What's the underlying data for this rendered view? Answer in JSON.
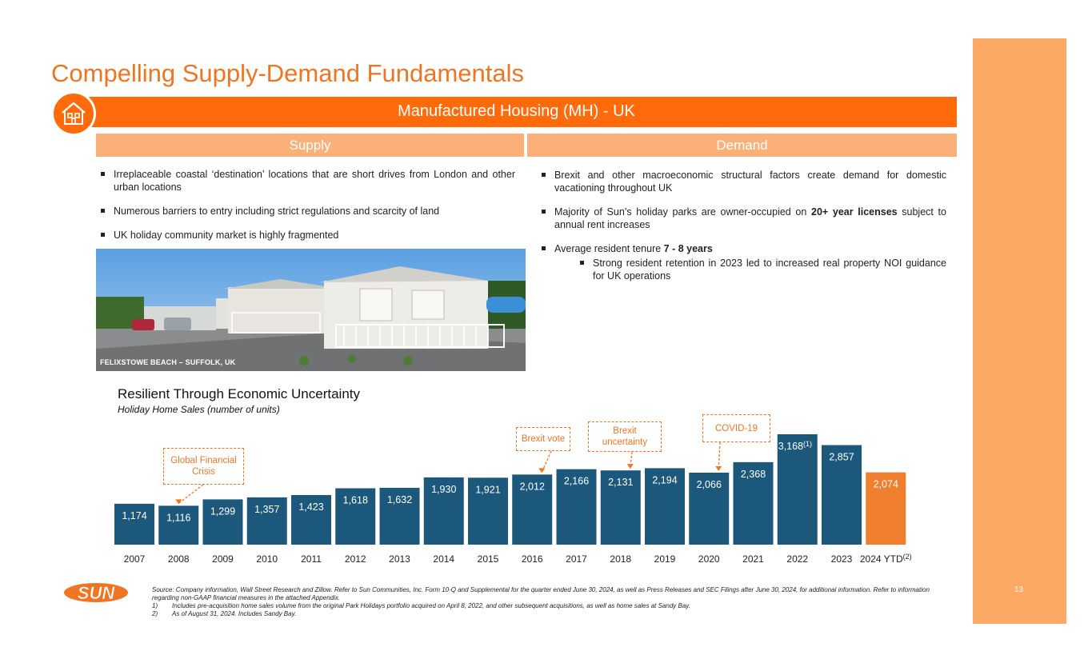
{
  "title": "Compelling Supply-Demand Fundamentals",
  "banner": "Manufactured Housing (MH) - UK",
  "supply": {
    "heading": "Supply",
    "items": [
      "Irreplaceable coastal ‘destination’ locations that are short drives from London and other urban locations",
      "Numerous barriers to entry including strict regulations and scarcity of land",
      "UK holiday community market is highly fragmented"
    ],
    "photo_caption": "FELIXSTOWE BEACH – SUFFOLK, UK"
  },
  "demand": {
    "heading": "Demand",
    "item1": "Brexit and other macroeconomic structural factors create demand for domestic vacationing throughout UK",
    "item2_pre": "Majority of Sun’s holiday parks are owner-occupied on ",
    "item2_bold": "20+ year licenses",
    "item2_post": " subject to annual rent increases",
    "item3_pre": "Average resident tenure ",
    "item3_bold": "7 - 8 years",
    "sub_item": "Strong resident retention in 2023 led to increased real property NOI guidance for UK operations"
  },
  "chart_title": "Resilient Through Economic Uncertainty",
  "chart_subtitle": "Holiday Home Sales (number of units)",
  "chart_data": {
    "type": "bar",
    "categories": [
      "2007",
      "2008",
      "2009",
      "2010",
      "2011",
      "2012",
      "2013",
      "2014",
      "2015",
      "2016",
      "2017",
      "2018",
      "2019",
      "2020",
      "2021",
      "2022",
      "2023",
      "2024 YTD"
    ],
    "values": [
      1174,
      1116,
      1299,
      1357,
      1423,
      1618,
      1632,
      1930,
      1921,
      2012,
      2166,
      2131,
      2194,
      2066,
      2368,
      3168,
      2857,
      2074
    ],
    "data_labels": [
      "1,174",
      "1,116",
      "1,299",
      "1,357",
      "1,423",
      "1,618",
      "1,632",
      "1,930",
      "1,921",
      "2,012",
      "2,166",
      "2,131",
      "2,194",
      "2,066",
      "2,368",
      "3,168",
      "2,857",
      "2,074"
    ],
    "label_superscripts": {
      "15": "(1)"
    },
    "category_superscripts": {
      "17": "(2)"
    },
    "colors": {
      "default": "#1c587b",
      "highlight": "#ef7f2f"
    },
    "highlight_index": 17,
    "annotations": [
      {
        "text": "Global Financial Crisis",
        "points_to": "2008"
      },
      {
        "text": "Brexit vote",
        "points_to": "2016"
      },
      {
        "text": "Brexit uncertainty",
        "points_to": "2018"
      },
      {
        "text": "COVID-19",
        "points_to": "2020"
      }
    ]
  },
  "logo_text": "SUN",
  "footnotes": {
    "source": "Source: Company information, Wall Street Research and Zillow. Refer to Sun Communities, Inc. Form 10-Q and Supplemental for the quarter ended June 30, 2024, as well as Press Releases and SEC Filings after June 30, 2024, for additional information. Refer to information regarding non-GAAP financial measures in the attached Appendix.",
    "notes": [
      {
        "num": "1)",
        "text": "Includes pre-acquisition home sales volume from the original Park Holidays portfolio acquired on April 8, 2022, and other subsequent acquisitions, as well as home sales at Sandy Bay."
      },
      {
        "num": "2)",
        "text": "As of August 31, 2024. Includes Sandy Bay."
      }
    ]
  },
  "page_number": "13"
}
